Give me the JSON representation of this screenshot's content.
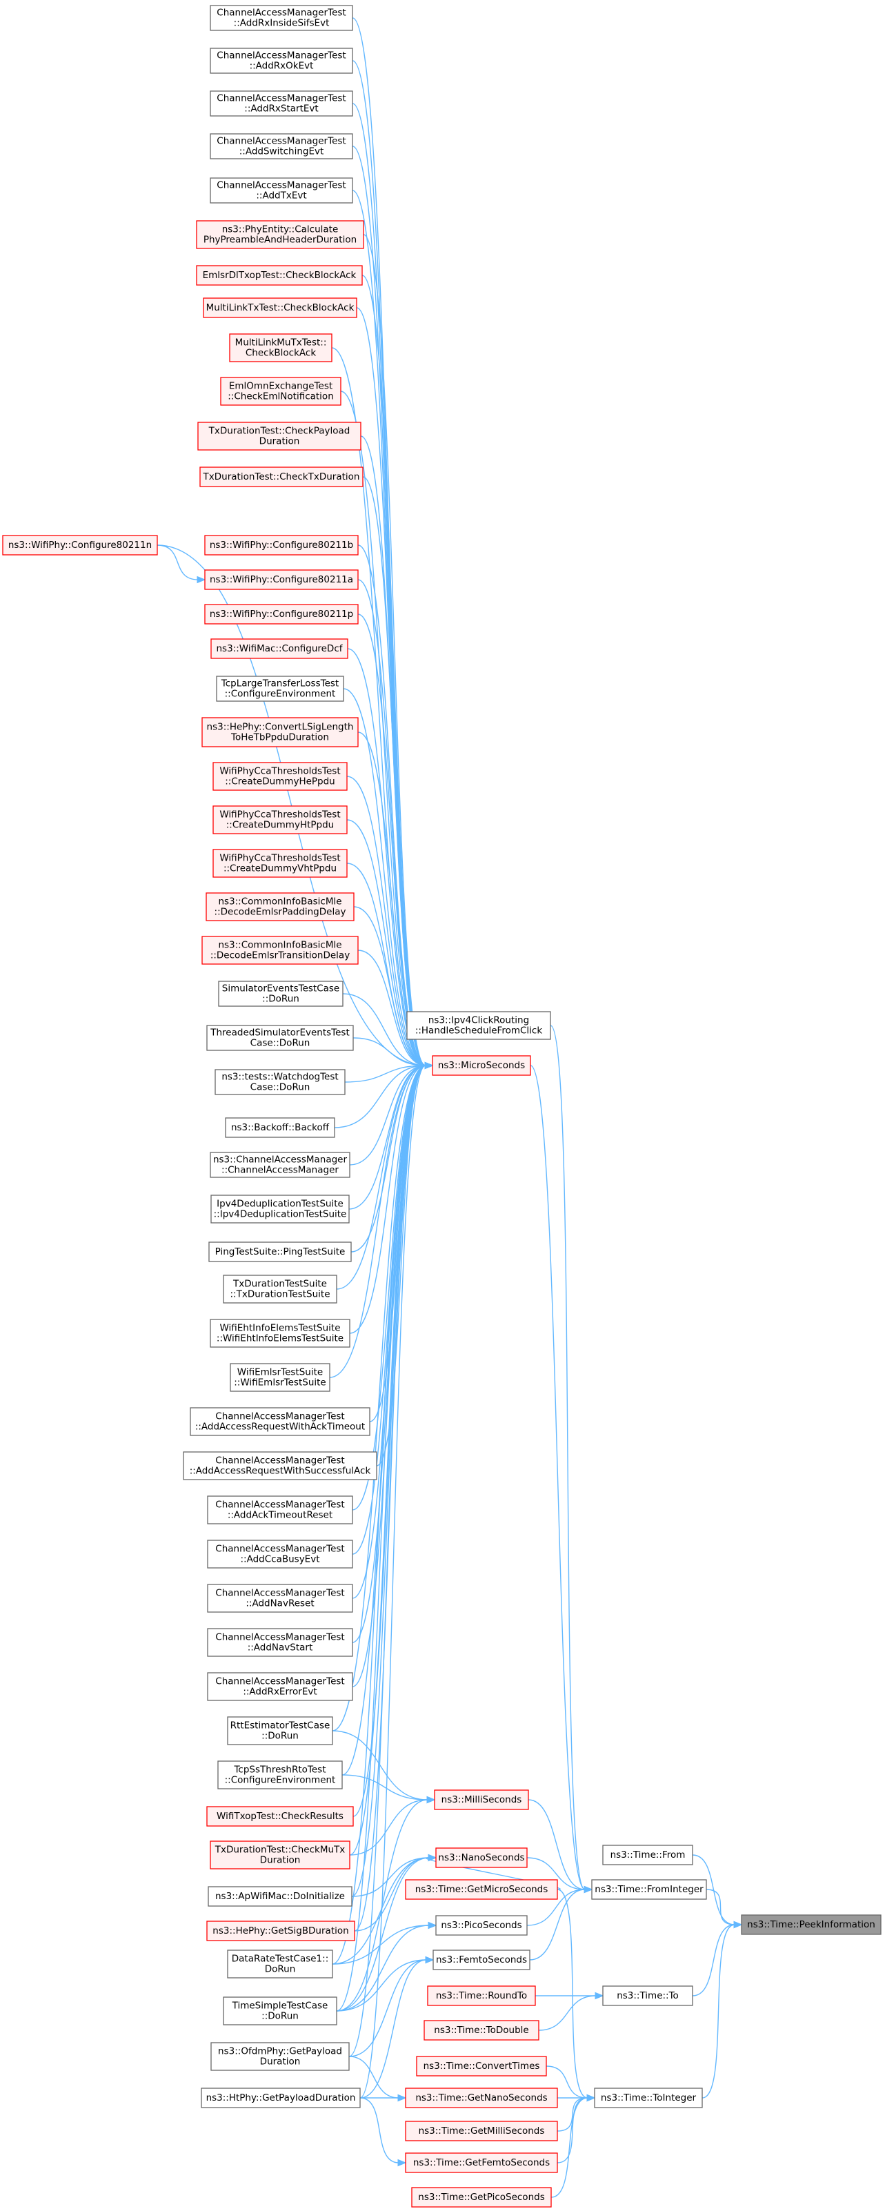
{
  "graph_title": "",
  "colors": {
    "edge": "#63b8ff",
    "border_normal": "#666666",
    "border_truncated": "#ff0000",
    "fill_normal": "#ffffff",
    "fill_truncated": "#fff0f0",
    "fill_focus": "#999999",
    "border_focus": "#666666"
  },
  "nodes": [
    {
      "id": "n0",
      "lines": [
        "ChannelAccessManagerTest",
        "::AddRxInsideSifsEvt"
      ],
      "style": "normal"
    },
    {
      "id": "n1",
      "lines": [
        "ChannelAccessManagerTest",
        "::AddRxOkEvt"
      ],
      "style": "normal"
    },
    {
      "id": "n2",
      "lines": [
        "ChannelAccessManagerTest",
        "::AddRxStartEvt"
      ],
      "style": "normal"
    },
    {
      "id": "n3",
      "lines": [
        "ChannelAccessManagerTest",
        "::AddSwitchingEvt"
      ],
      "style": "normal"
    },
    {
      "id": "n4",
      "lines": [
        "ChannelAccessManagerTest",
        "::AddTxEvt"
      ],
      "style": "normal"
    },
    {
      "id": "n5",
      "lines": [
        "ns3::PhyEntity::Calculate",
        "PhyPreambleAndHeaderDuration"
      ],
      "style": "truncated"
    },
    {
      "id": "n6",
      "lines": [
        "EmlsrDlTxopTest::CheckBlockAck"
      ],
      "style": "truncated"
    },
    {
      "id": "n7",
      "lines": [
        "MultiLinkTxTest::CheckBlockAck"
      ],
      "style": "truncated"
    },
    {
      "id": "n8",
      "lines": [
        "MultiLinkMuTxTest::",
        "CheckBlockAck"
      ],
      "style": "truncated"
    },
    {
      "id": "n9",
      "lines": [
        "EmlOmnExchangeTest",
        "::CheckEmlNotification"
      ],
      "style": "truncated"
    },
    {
      "id": "n10",
      "lines": [
        "TxDurationTest::CheckPayload",
        "Duration"
      ],
      "style": "truncated"
    },
    {
      "id": "n11",
      "lines": [
        "TxDurationTest::CheckTxDuration"
      ],
      "style": "truncated"
    },
    {
      "id": "n12",
      "lines": [
        "ns3::WifiPhy::Configure80211b"
      ],
      "style": "truncated"
    },
    {
      "id": "n13",
      "lines": [
        "ns3::WifiPhy::Configure80211n"
      ],
      "style": "truncated"
    },
    {
      "id": "n14",
      "lines": [
        "ns3::WifiPhy::Configure80211a"
      ],
      "style": "truncated"
    },
    {
      "id": "n15",
      "lines": [
        "ns3::WifiPhy::Configure80211p"
      ],
      "style": "truncated"
    },
    {
      "id": "n16",
      "lines": [
        "ns3::WifiMac::ConfigureDcf"
      ],
      "style": "truncated"
    },
    {
      "id": "n17",
      "lines": [
        "TcpLargeTransferLossTest",
        "::ConfigureEnvironment"
      ],
      "style": "normal"
    },
    {
      "id": "n18",
      "lines": [
        "ns3::HePhy::ConvertLSigLength",
        "ToHeTbPpduDuration"
      ],
      "style": "truncated"
    },
    {
      "id": "n19",
      "lines": [
        "WifiPhyCcaThresholdsTest",
        "::CreateDummyHePpdu"
      ],
      "style": "truncated"
    },
    {
      "id": "n20",
      "lines": [
        "WifiPhyCcaThresholdsTest",
        "::CreateDummyHtPpdu"
      ],
      "style": "truncated"
    },
    {
      "id": "n21",
      "lines": [
        "WifiPhyCcaThresholdsTest",
        "::CreateDummyVhtPpdu"
      ],
      "style": "truncated"
    },
    {
      "id": "n22",
      "lines": [
        "ns3::CommonInfoBasicMle",
        "::DecodeEmlsrPaddingDelay"
      ],
      "style": "truncated"
    },
    {
      "id": "n23",
      "lines": [
        "ns3::CommonInfoBasicMle",
        "::DecodeEmlsrTransitionDelay"
      ],
      "style": "truncated"
    },
    {
      "id": "n24",
      "lines": [
        "SimulatorEventsTestCase",
        "::DoRun"
      ],
      "style": "normal"
    },
    {
      "id": "n25",
      "lines": [
        "ns3::Ipv4ClickRouting",
        "::HandleScheduleFromClick"
      ],
      "style": "normal"
    },
    {
      "id": "n26",
      "lines": [
        "ThreadedSimulatorEventsTest",
        "Case::DoRun"
      ],
      "style": "normal"
    },
    {
      "id": "n27",
      "lines": [
        "ns3::MicroSeconds"
      ],
      "style": "truncated"
    },
    {
      "id": "n28",
      "lines": [
        "ns3::tests::WatchdogTest",
        "Case::DoRun"
      ],
      "style": "normal"
    },
    {
      "id": "n29",
      "lines": [
        "ns3::Backoff::Backoff"
      ],
      "style": "normal"
    },
    {
      "id": "n30",
      "lines": [
        "ns3::ChannelAccessManager",
        "::ChannelAccessManager"
      ],
      "style": "normal"
    },
    {
      "id": "n31",
      "lines": [
        "Ipv4DeduplicationTestSuite",
        "::Ipv4DeduplicationTestSuite"
      ],
      "style": "normal"
    },
    {
      "id": "n32",
      "lines": [
        "PingTestSuite::PingTestSuite"
      ],
      "style": "normal"
    },
    {
      "id": "n33",
      "lines": [
        "TxDurationTestSuite",
        "::TxDurationTestSuite"
      ],
      "style": "normal"
    },
    {
      "id": "n34",
      "lines": [
        "WifiEhtInfoElemsTestSuite",
        "::WifiEhtInfoElemsTestSuite"
      ],
      "style": "normal"
    },
    {
      "id": "n35",
      "lines": [
        "WifiEmlsrTestSuite",
        "::WifiEmlsrTestSuite"
      ],
      "style": "normal"
    },
    {
      "id": "n36",
      "lines": [
        "ChannelAccessManagerTest",
        "::AddAccessRequestWithAckTimeout"
      ],
      "style": "normal"
    },
    {
      "id": "n37",
      "lines": [
        "ChannelAccessManagerTest",
        "::AddAccessRequestWithSuccessfulAck"
      ],
      "style": "normal"
    },
    {
      "id": "n38",
      "lines": [
        "ChannelAccessManagerTest",
        "::AddAckTimeoutReset"
      ],
      "style": "normal"
    },
    {
      "id": "n39",
      "lines": [
        "ChannelAccessManagerTest",
        "::AddCcaBusyEvt"
      ],
      "style": "normal"
    },
    {
      "id": "n40",
      "lines": [
        "ChannelAccessManagerTest",
        "::AddNavReset"
      ],
      "style": "normal"
    },
    {
      "id": "n41",
      "lines": [
        "ChannelAccessManagerTest",
        "::AddNavStart"
      ],
      "style": "normal"
    },
    {
      "id": "n42",
      "lines": [
        "ChannelAccessManagerTest",
        "::AddRxErrorEvt"
      ],
      "style": "normal"
    },
    {
      "id": "n43",
      "lines": [
        "RttEstimatorTestCase",
        "::DoRun"
      ],
      "style": "normal"
    },
    {
      "id": "n44",
      "lines": [
        "TcpSsThreshRtoTest",
        "::ConfigureEnvironment"
      ],
      "style": "normal"
    },
    {
      "id": "n45",
      "lines": [
        "ns3::MilliSeconds"
      ],
      "style": "truncated"
    },
    {
      "id": "n46",
      "lines": [
        "WifiTxopTest::CheckResults"
      ],
      "style": "truncated"
    },
    {
      "id": "n47",
      "lines": [
        "TxDurationTest::CheckMuTx",
        "Duration"
      ],
      "style": "truncated"
    },
    {
      "id": "n48",
      "lines": [
        "ns3::NanoSeconds"
      ],
      "style": "truncated"
    },
    {
      "id": "n49",
      "lines": [
        "ns3::Time::From"
      ],
      "style": "normal"
    },
    {
      "id": "n50",
      "lines": [
        "ns3::ApWifiMac::DoInitialize"
      ],
      "style": "normal"
    },
    {
      "id": "n51",
      "lines": [
        "ns3::Time::GetMicroSeconds"
      ],
      "style": "truncated"
    },
    {
      "id": "n52",
      "lines": [
        "ns3::Time::FromInteger"
      ],
      "style": "normal"
    },
    {
      "id": "n53",
      "lines": [
        "ns3::Time::PeekInformation"
      ],
      "style": "focus"
    },
    {
      "id": "n54",
      "lines": [
        "ns3::HePhy::GetSigBDuration"
      ],
      "style": "truncated"
    },
    {
      "id": "n55",
      "lines": [
        "ns3::PicoSeconds"
      ],
      "style": "normal"
    },
    {
      "id": "n56",
      "lines": [
        "DataRateTestCase1::",
        "DoRun"
      ],
      "style": "normal"
    },
    {
      "id": "n57",
      "lines": [
        "ns3::FemtoSeconds"
      ],
      "style": "normal"
    },
    {
      "id": "n58",
      "lines": [
        "ns3::Time::RoundTo"
      ],
      "style": "truncated"
    },
    {
      "id": "n59",
      "lines": [
        "ns3::Time::To"
      ],
      "style": "normal"
    },
    {
      "id": "n60",
      "lines": [
        "TimeSimpleTestCase",
        "::DoRun"
      ],
      "style": "normal"
    },
    {
      "id": "n61",
      "lines": [
        "ns3::Time::ToDouble"
      ],
      "style": "truncated"
    },
    {
      "id": "n62",
      "lines": [
        "ns3::OfdmPhy::GetPayload",
        "Duration"
      ],
      "style": "normal"
    },
    {
      "id": "n63",
      "lines": [
        "ns3::Time::ConvertTimes"
      ],
      "style": "truncated"
    },
    {
      "id": "n64",
      "lines": [
        "ns3::HtPhy::GetPayloadDuration"
      ],
      "style": "normal"
    },
    {
      "id": "n65",
      "lines": [
        "ns3::Time::GetNanoSeconds"
      ],
      "style": "truncated"
    },
    {
      "id": "n66",
      "lines": [
        "ns3::Time::ToInteger"
      ],
      "style": "normal"
    },
    {
      "id": "n67",
      "lines": [
        "ns3::Time::GetMilliSeconds"
      ],
      "style": "truncated"
    },
    {
      "id": "n68",
      "lines": [
        "ns3::Time::GetFemtoSeconds"
      ],
      "style": "truncated"
    },
    {
      "id": "n69",
      "lines": [
        "ns3::Time::GetPicoSeconds"
      ],
      "style": "truncated"
    }
  ],
  "edges": [
    [
      "n0",
      "n27"
    ],
    [
      "n1",
      "n27"
    ],
    [
      "n2",
      "n27"
    ],
    [
      "n3",
      "n27"
    ],
    [
      "n4",
      "n27"
    ],
    [
      "n5",
      "n27"
    ],
    [
      "n6",
      "n27"
    ],
    [
      "n7",
      "n27"
    ],
    [
      "n8",
      "n27"
    ],
    [
      "n9",
      "n27"
    ],
    [
      "n10",
      "n27"
    ],
    [
      "n11",
      "n27"
    ],
    [
      "n12",
      "n27"
    ],
    [
      "n13",
      "n27"
    ],
    [
      "n13",
      "n14"
    ],
    [
      "n14",
      "n27"
    ],
    [
      "n15",
      "n27"
    ],
    [
      "n16",
      "n27"
    ],
    [
      "n17",
      "n27"
    ],
    [
      "n18",
      "n27"
    ],
    [
      "n19",
      "n27"
    ],
    [
      "n20",
      "n27"
    ],
    [
      "n21",
      "n27"
    ],
    [
      "n22",
      "n27"
    ],
    [
      "n23",
      "n27"
    ],
    [
      "n24",
      "n27"
    ],
    [
      "n26",
      "n27"
    ],
    [
      "n28",
      "n27"
    ],
    [
      "n29",
      "n27"
    ],
    [
      "n30",
      "n27"
    ],
    [
      "n31",
      "n27"
    ],
    [
      "n32",
      "n27"
    ],
    [
      "n33",
      "n27"
    ],
    [
      "n34",
      "n27"
    ],
    [
      "n35",
      "n27"
    ],
    [
      "n36",
      "n27"
    ],
    [
      "n37",
      "n27"
    ],
    [
      "n38",
      "n27"
    ],
    [
      "n39",
      "n27"
    ],
    [
      "n40",
      "n27"
    ],
    [
      "n41",
      "n27"
    ],
    [
      "n42",
      "n27"
    ],
    [
      "n43",
      "n27"
    ],
    [
      "n44",
      "n27"
    ],
    [
      "n46",
      "n27"
    ],
    [
      "n47",
      "n27"
    ],
    [
      "n50",
      "n27"
    ],
    [
      "n54",
      "n27"
    ],
    [
      "n56",
      "n27"
    ],
    [
      "n60",
      "n27"
    ],
    [
      "n62",
      "n27"
    ],
    [
      "n64",
      "n27"
    ],
    [
      "n43",
      "n45"
    ],
    [
      "n44",
      "n45"
    ],
    [
      "n47",
      "n45"
    ],
    [
      "n60",
      "n45"
    ],
    [
      "n50",
      "n48"
    ],
    [
      "n54",
      "n48"
    ],
    [
      "n56",
      "n48"
    ],
    [
      "n60",
      "n48"
    ],
    [
      "n56",
      "n55"
    ],
    [
      "n60",
      "n55"
    ],
    [
      "n60",
      "n57"
    ],
    [
      "n62",
      "n57"
    ],
    [
      "n64",
      "n57"
    ],
    [
      "n25",
      "n52"
    ],
    [
      "n27",
      "n52"
    ],
    [
      "n45",
      "n52"
    ],
    [
      "n48",
      "n52"
    ],
    [
      "n55",
      "n52"
    ],
    [
      "n57",
      "n52"
    ],
    [
      "n52",
      "n53"
    ],
    [
      "n49",
      "n53"
    ],
    [
      "n59",
      "n53"
    ],
    [
      "n66",
      "n53"
    ],
    [
      "n58",
      "n59"
    ],
    [
      "n61",
      "n59"
    ],
    [
      "n51",
      "n66"
    ],
    [
      "n63",
      "n66"
    ],
    [
      "n65",
      "n66"
    ],
    [
      "n67",
      "n66"
    ],
    [
      "n68",
      "n66"
    ],
    [
      "n69",
      "n66"
    ],
    [
      "n51",
      "n48"
    ],
    [
      "n62",
      "n65"
    ],
    [
      "n64",
      "n65"
    ],
    [
      "n64",
      "n68"
    ]
  ]
}
